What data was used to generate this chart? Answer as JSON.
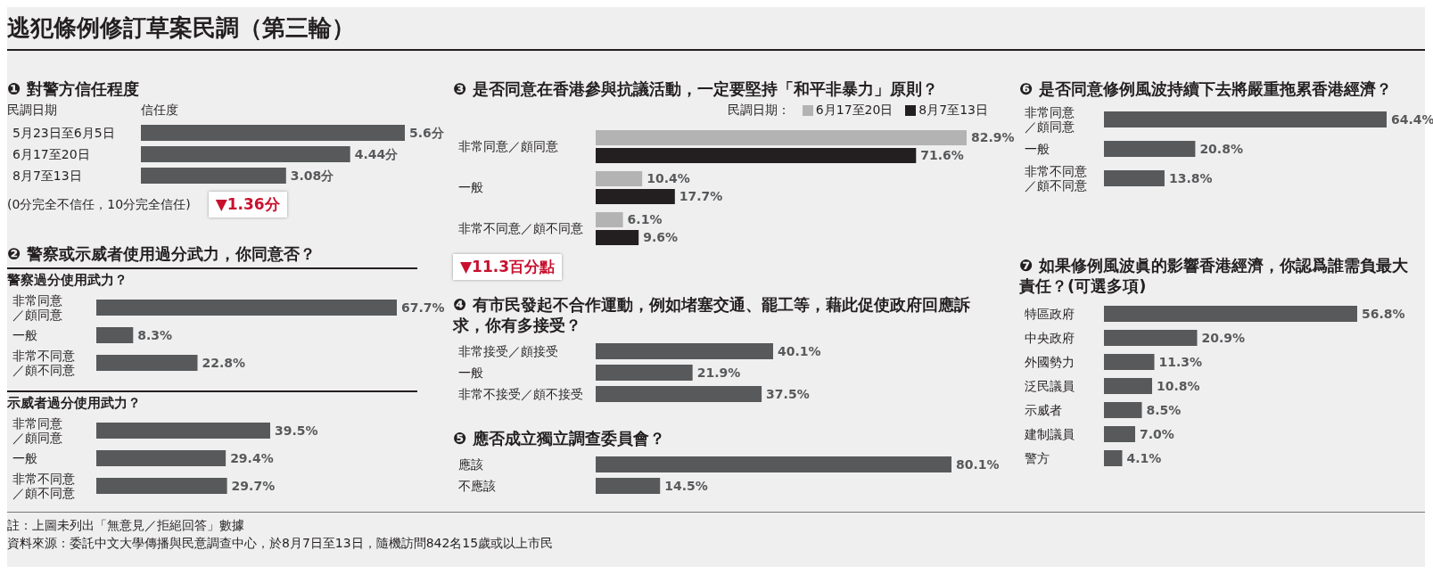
{
  "chart_data": [
    {
      "type": "other",
      "title": "逃犯條例修訂草案民調（第三輪）",
      "annotations": [
        "註：上圖未列出「無意見／拒絕回答」數據",
        "資料來源：委託中文大學傳播與民意調查中心，於8月7日至13日，隨機訪問842名15歲或以上市民"
      ]
    },
    {
      "type": "bar",
      "orientation": "horizontal",
      "title": "❶ 對警方信任程度",
      "ylabel": "民調日期",
      "xlabel": "信任度",
      "categories": [
        "5月23日至6月5日",
        "6月17至20日",
        "8月7至13日"
      ],
      "values": [
        5.6,
        4.44,
        3.08
      ],
      "value_labels": [
        "5.6分",
        "4.44分",
        "3.08分"
      ],
      "color": "#58595b",
      "annotations": [
        "(0分完全不信任，10分完全信任)",
        "▼1.36分"
      ]
    },
    {
      "type": "bar",
      "orientation": "horizontal",
      "title": "❷ 警察或示威者使用過分武力，你同意否？",
      "subtitle": "警察過分使用武力？",
      "categories": [
        "非常同意／頗同意",
        "一般",
        "非常不同意／頗不同意"
      ],
      "values": [
        67.7,
        8.3,
        22.8
      ],
      "value_labels": [
        "67.7%",
        "8.3%",
        "22.8%"
      ],
      "color": "#58595b"
    },
    {
      "type": "bar",
      "orientation": "horizontal",
      "subtitle": "示威者過分使用武力？",
      "categories": [
        "非常同意／頗同意",
        "一般",
        "非常不同意／頗不同意"
      ],
      "values": [
        39.5,
        29.4,
        29.7
      ],
      "value_labels": [
        "39.5%",
        "29.4%",
        "29.7%"
      ],
      "color": "#58595b"
    },
    {
      "type": "bar",
      "orientation": "horizontal",
      "title": "❸ 是否同意在香港參與抗議活動，一定要堅持「和平非暴力」原則？",
      "legend": "top right",
      "legend_title": "民調日期：",
      "categories": [
        "非常同意／頗同意",
        "一般",
        "非常不同意／頗不同意"
      ],
      "series": [
        {
          "name": "6月17至20日",
          "color": "#b3b3b3",
          "values": [
            82.9,
            10.4,
            6.1
          ],
          "value_labels": [
            "82.9%",
            "10.4%",
            "6.1%"
          ]
        },
        {
          "name": "8月7至13日",
          "color": "#231f20",
          "values": [
            71.6,
            17.7,
            9.6
          ],
          "value_labels": [
            "71.6%",
            "17.7%",
            "9.6%"
          ]
        }
      ],
      "annotations": [
        "▼11.3百分點"
      ]
    },
    {
      "type": "bar",
      "orientation": "horizontal",
      "title": "❹ 有市民發起不合作運動，例如堵塞交通、罷工等，藉此促使政府回應訴求，你有多接受？",
      "categories": [
        "非常接受／頗接受",
        "一般",
        "非常不接受／頗不接受"
      ],
      "values": [
        40.1,
        21.9,
        37.5
      ],
      "value_labels": [
        "40.1%",
        "21.9%",
        "37.5%"
      ],
      "color": "#58595b"
    },
    {
      "type": "bar",
      "orientation": "horizontal",
      "title": "❺ 應否成立獨立調查委員會？",
      "categories": [
        "應該",
        "不應該"
      ],
      "values": [
        80.1,
        14.5
      ],
      "value_labels": [
        "80.1%",
        "14.5%"
      ],
      "color": "#58595b"
    },
    {
      "type": "bar",
      "orientation": "horizontal",
      "title": "❻ 是否同意修例風波持續下去將嚴重拖累香港經濟？",
      "categories": [
        "非常同意／頗同意",
        "一般",
        "非常不同意／頗不同意"
      ],
      "values": [
        64.4,
        20.8,
        13.8
      ],
      "value_labels": [
        "64.4%",
        "20.8%",
        "13.8%"
      ],
      "color": "#58595b"
    },
    {
      "type": "bar",
      "orientation": "horizontal",
      "title": "❼ 如果修例風波眞的影響香港經濟，你認爲誰需負最大責任？(可選多項)",
      "categories": [
        "特區政府",
        "中央政府",
        "外國勢力",
        "泛民議員",
        "示威者",
        "建制議員",
        "警方"
      ],
      "values": [
        56.8,
        20.9,
        11.3,
        10.8,
        8.5,
        7.0,
        4.1
      ],
      "value_labels": [
        "56.8%",
        "20.9%",
        "11.3%",
        "10.8%",
        "8.5%",
        "7.0%",
        "4.1%"
      ],
      "color": "#58595b"
    }
  ]
}
